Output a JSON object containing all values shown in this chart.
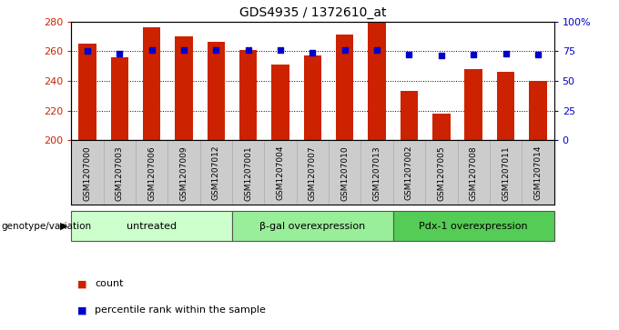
{
  "title": "GDS4935 / 1372610_at",
  "samples": [
    "GSM1207000",
    "GSM1207003",
    "GSM1207006",
    "GSM1207009",
    "GSM1207012",
    "GSM1207001",
    "GSM1207004",
    "GSM1207007",
    "GSM1207010",
    "GSM1207013",
    "GSM1207002",
    "GSM1207005",
    "GSM1207008",
    "GSM1207011",
    "GSM1207014"
  ],
  "counts": [
    265,
    256,
    276,
    270,
    266,
    261,
    251,
    257,
    271,
    280,
    233,
    218,
    248,
    246,
    240
  ],
  "percentiles": [
    75,
    73,
    76,
    76,
    76,
    76,
    76,
    74,
    76,
    76,
    72,
    71,
    72,
    73,
    72
  ],
  "groups": [
    {
      "label": "untreated",
      "start": 0,
      "end": 5,
      "color": "#ccffcc"
    },
    {
      "label": "β-gal overexpression",
      "start": 5,
      "end": 10,
      "color": "#99ee99"
    },
    {
      "label": "Pdx-1 overexpression",
      "start": 10,
      "end": 15,
      "color": "#55cc55"
    }
  ],
  "bar_color": "#cc2200",
  "dot_color": "#0000cc",
  "ylim_left": [
    200,
    280
  ],
  "ylim_right": [
    0,
    100
  ],
  "yticks_left": [
    200,
    220,
    240,
    260,
    280
  ],
  "yticks_right": [
    0,
    25,
    50,
    75,
    100
  ],
  "ytick_labels_right": [
    "0",
    "25",
    "50",
    "75",
    "100%"
  ],
  "bar_width": 0.55
}
